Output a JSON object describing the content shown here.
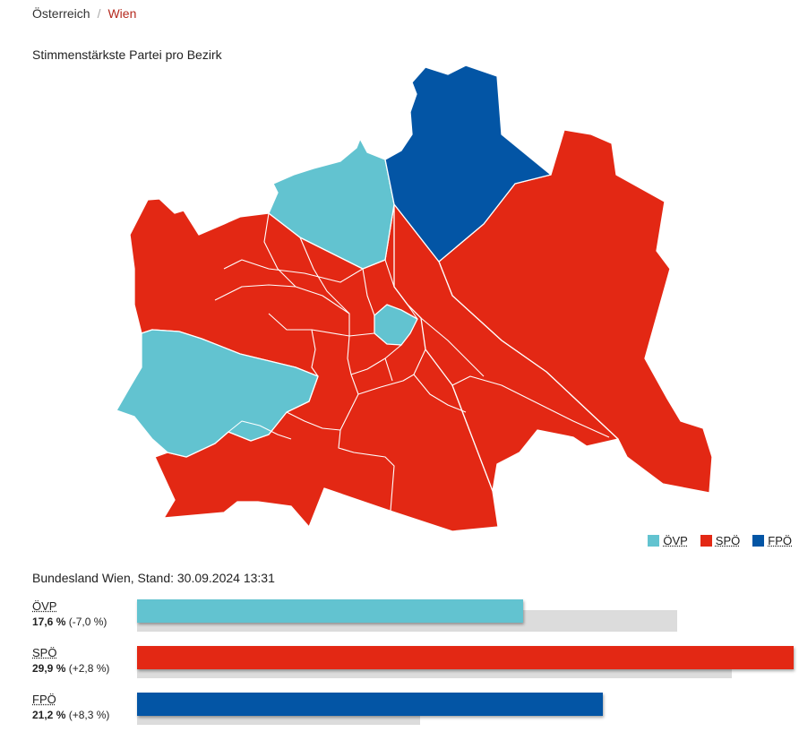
{
  "breadcrumb": {
    "home": "Österreich",
    "separator": "/",
    "current": "Wien"
  },
  "map": {
    "title": "Stimmenstärkste Partei pro Bezirk",
    "colors": {
      "oevp": "#62c3d0",
      "spoe": "#e32814",
      "fpoe": "#0355a5"
    }
  },
  "legend": [
    {
      "label": "ÖVP",
      "color": "#62c3d0"
    },
    {
      "label": "SPÖ",
      "color": "#e32814"
    },
    {
      "label": "FPÖ",
      "color": "#0355a5"
    }
  ],
  "results": {
    "subtitle": "Bundesland Wien, Stand: 30.09.2024 13:31",
    "parties": [
      {
        "name": "ÖVP",
        "percent": "17,6 %",
        "change": "(-7,0 %)",
        "value": 17.6,
        "previous": 24.6,
        "color": "#62c3d0"
      },
      {
        "name": "SPÖ",
        "percent": "29,9 %",
        "change": "(+2,8 %)",
        "value": 29.9,
        "previous": 27.1,
        "color": "#e32814"
      },
      {
        "name": "FPÖ",
        "percent": "21,2 %",
        "change": "(+8,3 %)",
        "value": 21.2,
        "previous": 12.9,
        "color": "#0355a5"
      }
    ]
  }
}
